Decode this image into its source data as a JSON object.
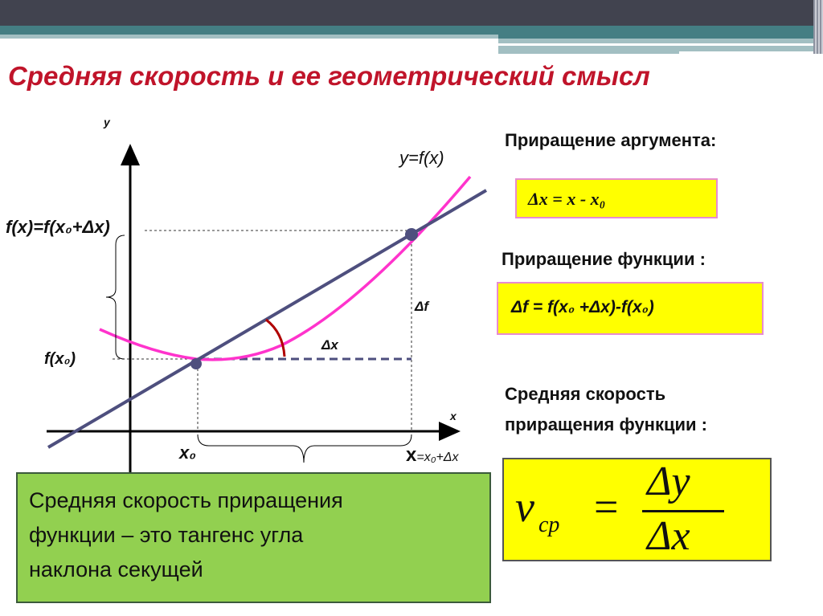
{
  "title": "Средняя скорость и ее геометрический смысл",
  "diagram": {
    "axis_y": "y",
    "axis_x": "x",
    "curve_label": "y=f(x)",
    "fx_label": "f(x)=f(x₀+Δx)",
    "fx0_label": "f(x₀)",
    "delta_f": "Δf",
    "delta_x": "Δx",
    "x0_label": "x₀",
    "x_label": "x",
    "x_eq": "=x₀+Δx",
    "colors": {
      "curve": "#ff33cc",
      "secant": "#4e4f7e",
      "angle": "#b00000"
    }
  },
  "right": {
    "arg_heading": "Приращение аргумента:",
    "arg_formula": "Δx = x - x₀",
    "func_heading": "Приращение функции :",
    "func_formula": "Δf = f(x₀ +Δx)-f(x₀)",
    "avg_heading_1": "Средняя скорость",
    "avg_heading_2": "приращения функции :",
    "v": "v",
    "v_sub": "cp",
    "eq": "=",
    "num": "Δy",
    "den": "Δx"
  },
  "note": {
    "line1": "Средняя скорость приращения",
    "line2": "функции – это тангенс угла",
    "line3": "наклона секущей"
  }
}
